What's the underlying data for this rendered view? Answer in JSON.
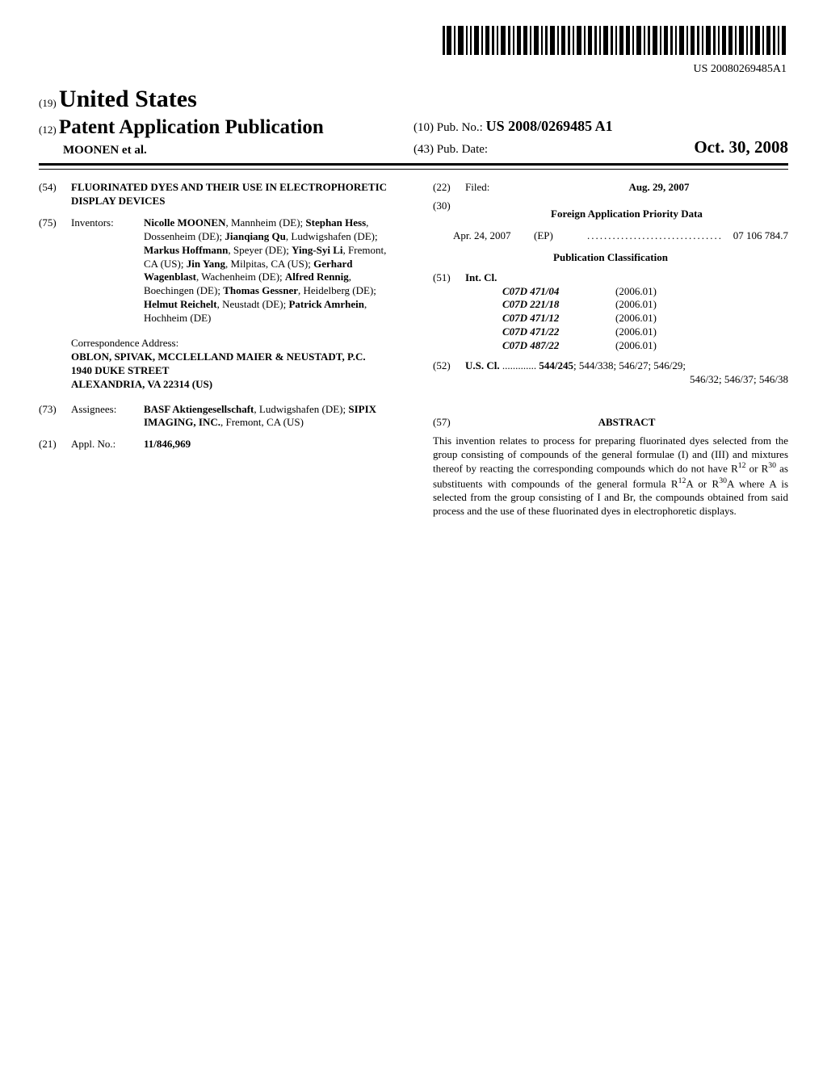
{
  "barcode": {
    "label_text": "US 20080269485A1"
  },
  "header": {
    "seq19": "(19)",
    "country": "United States",
    "seq12": "(12)",
    "doc_type": "Patent Application Publication",
    "applicants": "MOONEN et al.",
    "seq10": "(10)",
    "pubno_label": "Pub. No.:",
    "pubno": "US 2008/0269485 A1",
    "seq43": "(43)",
    "pubdate_label": "Pub. Date:",
    "pubdate": "Oct. 30, 2008"
  },
  "left": {
    "title": {
      "code": "(54)",
      "text": "FLUORINATED DYES AND THEIR USE IN ELECTROPHORETIC DISPLAY DEVICES"
    },
    "inventors": {
      "code": "(75)",
      "label": "Inventors:",
      "list": [
        {
          "name": "Nicolle MOONEN",
          "loc": "Mannheim (DE)"
        },
        {
          "name": "Stephan Hess",
          "loc": "Dossenheim (DE)"
        },
        {
          "name": "Jianqiang Qu",
          "loc": "Ludwigshafen (DE)"
        },
        {
          "name": "Markus Hoffmann",
          "loc": "Speyer (DE)"
        },
        {
          "name": "Ying-Syi Li",
          "loc": "Fremont, CA (US)"
        },
        {
          "name": "Jin Yang",
          "loc": "Milpitas, CA (US)"
        },
        {
          "name": "Gerhard Wagenblast",
          "loc": "Wachenheim (DE)"
        },
        {
          "name": "Alfred Rennig",
          "loc": "Boechingen (DE)"
        },
        {
          "name": "Thomas Gessner",
          "loc": "Heidelberg (DE)"
        },
        {
          "name": "Helmut Reichelt",
          "loc": "Neustadt (DE)"
        },
        {
          "name": "Patrick Amrhein",
          "loc": "Hochheim (DE)"
        }
      ]
    },
    "correspondence": {
      "heading": "Correspondence Address:",
      "name": "OBLON, SPIVAK, MCCLELLAND MAIER & NEUSTADT, P.C.",
      "street": "1940 DUKE STREET",
      "city": "ALEXANDRIA, VA 22314 (US)"
    },
    "assignees": {
      "code": "(73)",
      "label": "Assignees:",
      "a1_name": "BASF Aktiengesellschaft",
      "a1_loc": "Ludwigshafen (DE)",
      "a2_name": "SIPIX IMAGING, INC.",
      "a2_loc": "Fremont, CA (US)"
    },
    "applno": {
      "code": "(21)",
      "label": "Appl. No.:",
      "value": "11/846,969"
    }
  },
  "right": {
    "filed": {
      "code": "(22)",
      "label": "Filed:",
      "value": "Aug. 29, 2007"
    },
    "foreign_priority": {
      "code": "(30)",
      "heading": "Foreign Application Priority Data",
      "date": "Apr. 24, 2007",
      "cc": "(EP)",
      "dots": "................................",
      "number": "07 106 784.7"
    },
    "classification_heading": "Publication Classification",
    "intcl": {
      "code": "(51)",
      "label": "Int. Cl.",
      "rows": [
        {
          "sym": "C07D 471/04",
          "ver": "(2006.01)"
        },
        {
          "sym": "C07D 221/18",
          "ver": "(2006.01)"
        },
        {
          "sym": "C07D 471/12",
          "ver": "(2006.01)"
        },
        {
          "sym": "C07D 471/22",
          "ver": "(2006.01)"
        },
        {
          "sym": "C07D 487/22",
          "ver": "(2006.01)"
        }
      ]
    },
    "uscl": {
      "code": "(52)",
      "label": "U.S. Cl.",
      "dots": ".............",
      "first": "544/245",
      "rest1": "; 544/338; 546/27; 546/29;",
      "rest2": "546/32; 546/37; 546/38"
    },
    "abstract": {
      "code": "(57)",
      "heading": "ABSTRACT",
      "body_pre": "This invention relates to process for preparing fluorinated dyes selected from the group consisting of compounds of the general formulae (I) and (III) and mixtures thereof by reacting the corresponding compounds which do not have R",
      "body_mid1": " or R",
      "body_mid2": " as substituents with compounds of the general formula R",
      "body_mid3": "A or R",
      "body_post": "A where A is selected from the group consisting of I and Br, the compounds obtained from said process and the use of these fluorinated dyes in electrophoretic displays."
    }
  }
}
